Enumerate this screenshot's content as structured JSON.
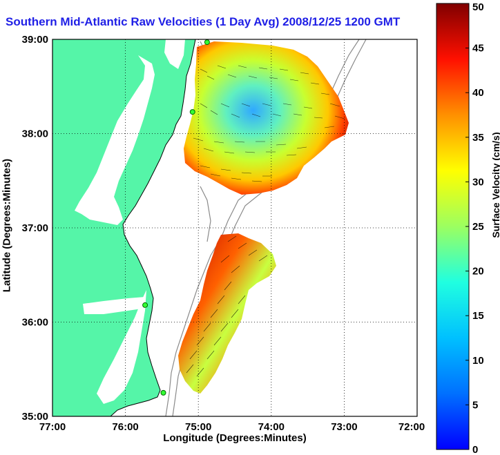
{
  "title": "Southern Mid-Atlantic Raw Velocities (1 Day Avg) 2008/12/25 1200 GMT",
  "x_axis_label": "Longitude (Degrees:Minutes)",
  "y_axis_label": "Latitude (Degrees:Minutes)",
  "x_ticks": [
    "77:00",
    "76:00",
    "75:00",
    "74:00",
    "73:00",
    "72:00"
  ],
  "y_ticks": [
    "39:00",
    "38:00",
    "37:00",
    "36:00",
    "35:00"
  ],
  "colorbar": {
    "label": "Surface Velocity (cm/s)",
    "ticks": [
      "0",
      "5",
      "10",
      "15",
      "20",
      "25",
      "30",
      "35",
      "40",
      "45",
      "50"
    ],
    "min": 0,
    "max": 50
  },
  "map": {
    "lon_range": [
      -77,
      -72
    ],
    "lat_range": [
      35,
      39
    ],
    "grid": "dotted",
    "land_color": "#55f5a8",
    "sea_color": "#ffffff",
    "stations": [
      {
        "lon": -74.88,
        "lat": 38.97
      },
      {
        "lon": -75.08,
        "lat": 38.23
      },
      {
        "lon": -75.73,
        "lat": 36.18
      },
      {
        "lon": -75.48,
        "lat": 35.25
      }
    ]
  }
}
